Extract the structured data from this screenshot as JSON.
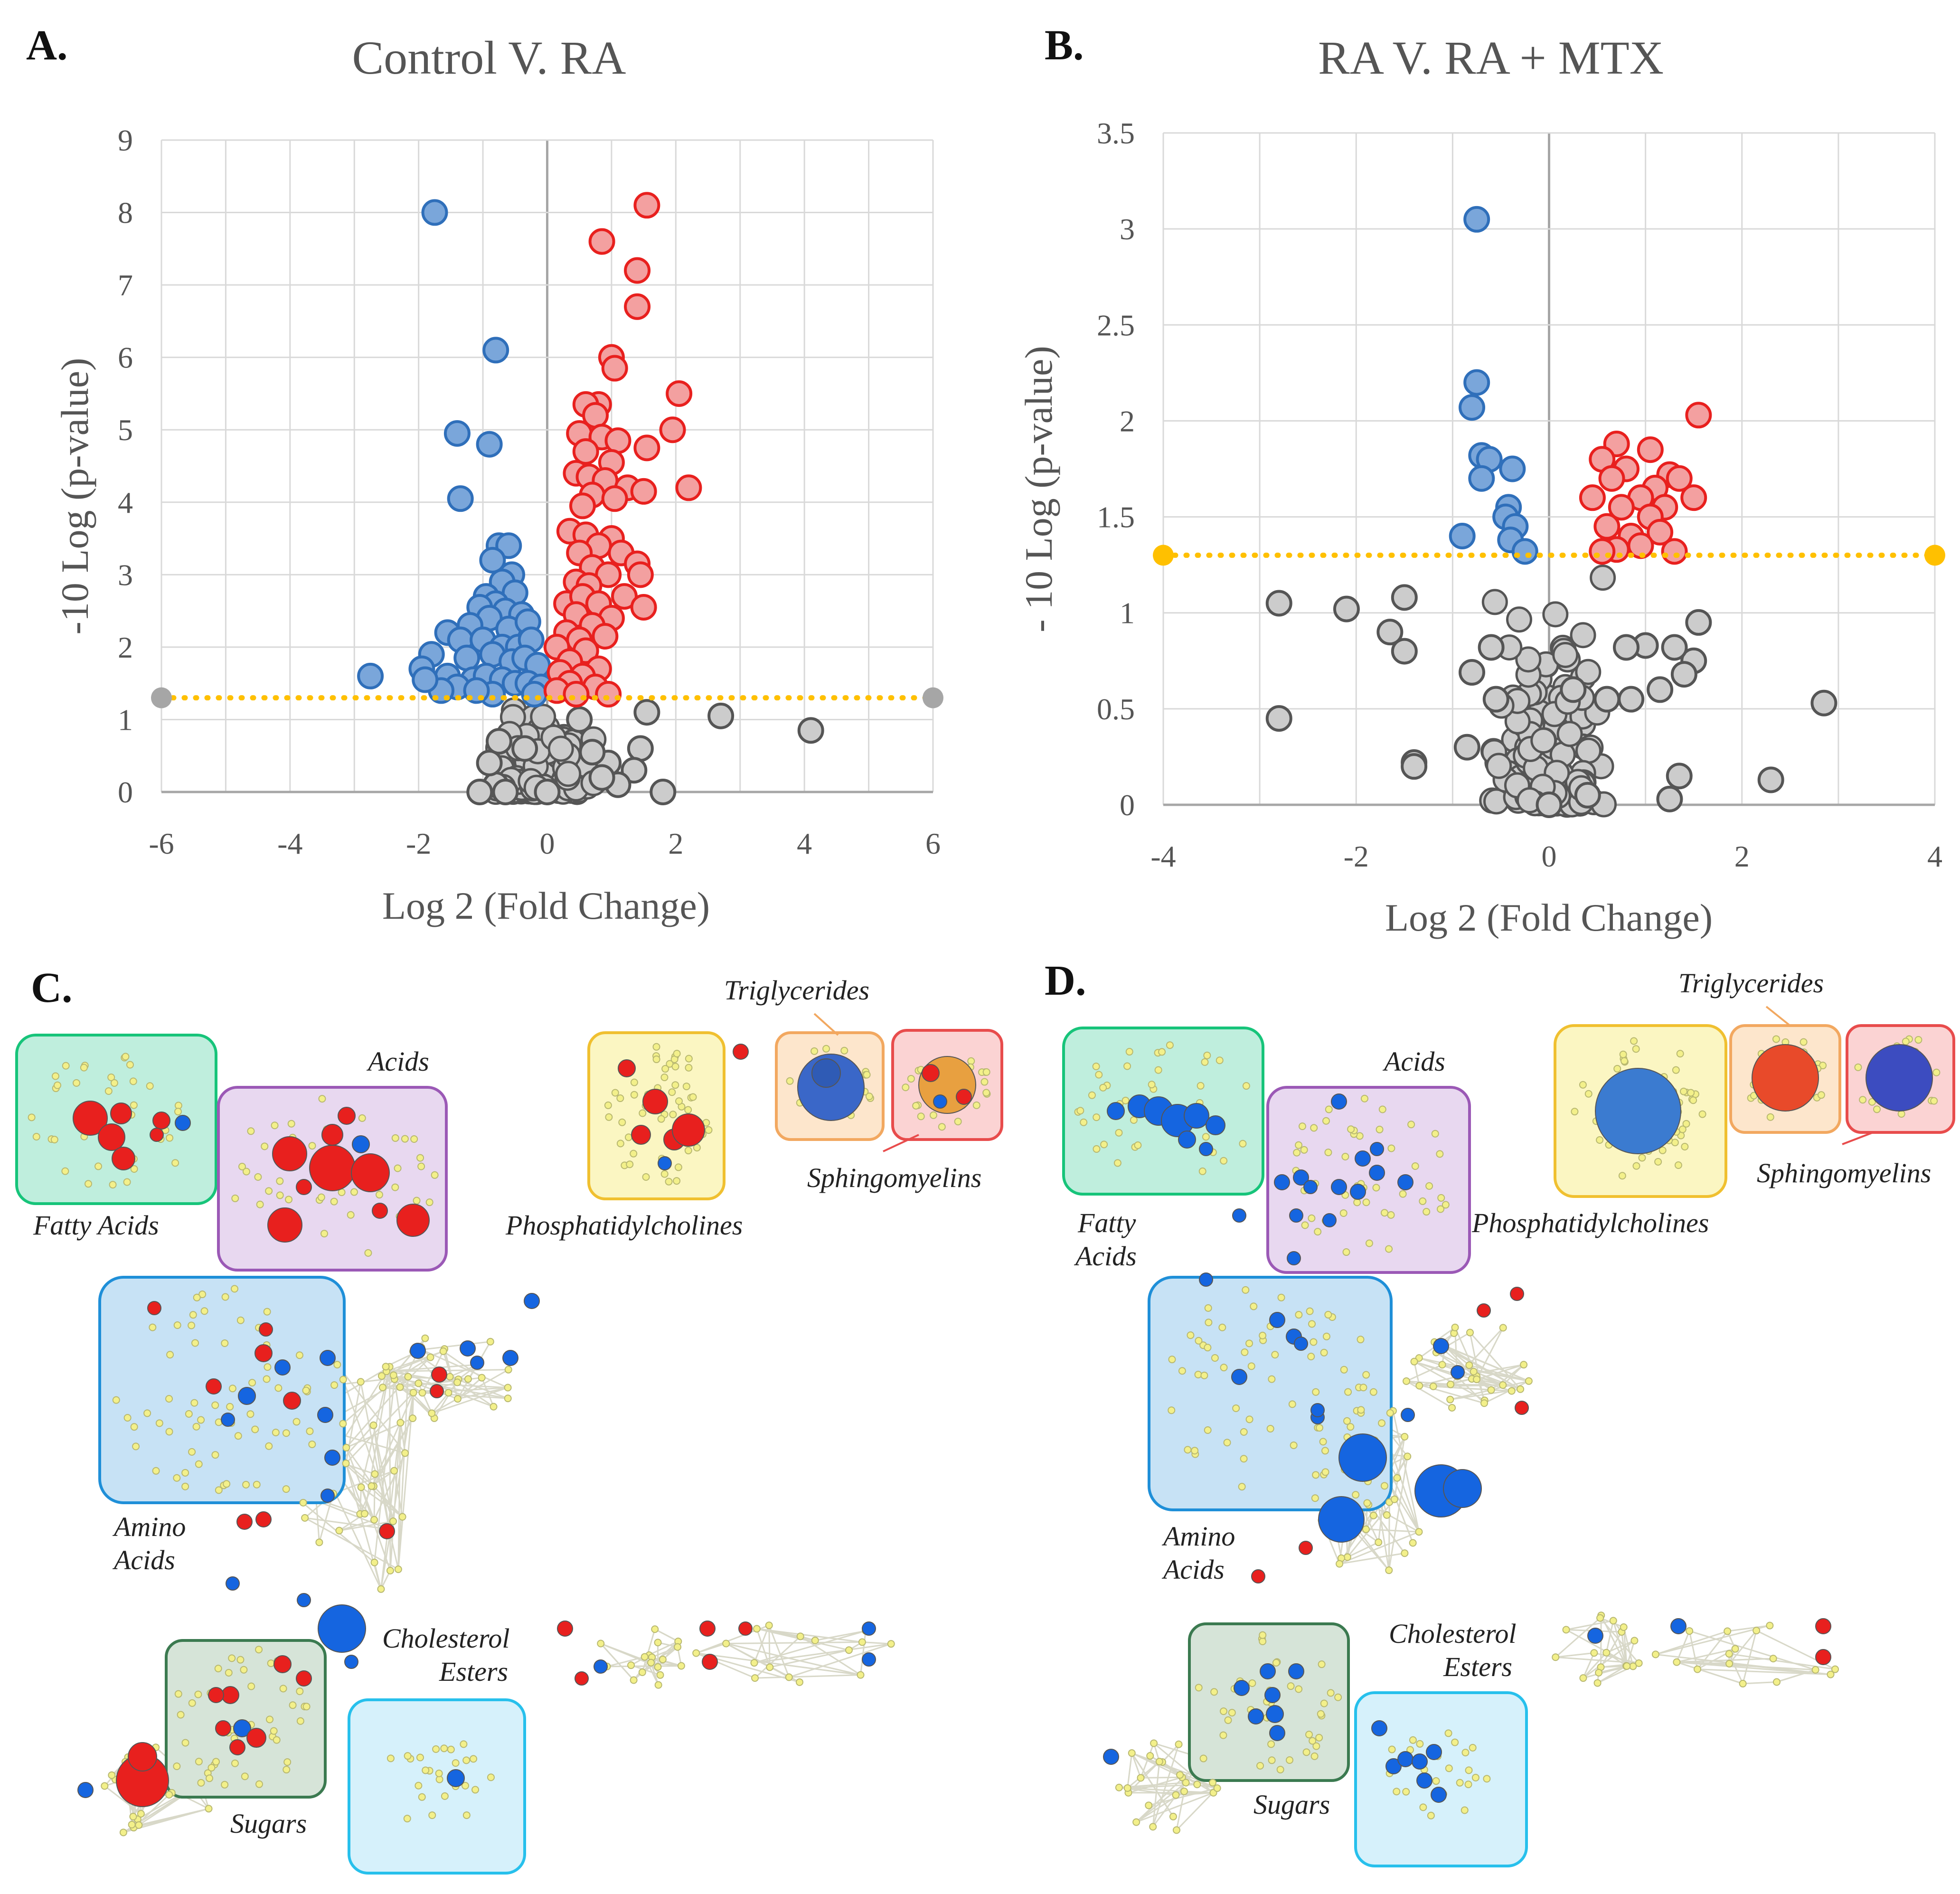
{
  "figure": {
    "colors": {
      "up": "#e8201e",
      "down": "#2f6fba",
      "down_light": "#7aa6da",
      "ns": "#cccccc",
      "ns_edge": "#555555",
      "threshold": "#ffc000",
      "up_fill": "#f3a0a0"
    },
    "panel_labels": [
      "A.",
      "B.",
      "C.",
      "D."
    ],
    "network_labels": {
      "c": [
        "Fatty Acids",
        "Acids",
        "Triglycerides",
        "Sphingomyelins",
        "Phosphatidylcholines",
        "Amino",
        "Acids",
        "Cholesterol",
        "Esters",
        "Sugars"
      ],
      "d": [
        "Fatty",
        "Acids",
        "Acids",
        "Triglycerides",
        "Sphingomyelins",
        "Phosphatidylcholines",
        "Amino",
        "Acids",
        "Cholesterol",
        "Esters",
        "Sugars"
      ]
    }
  },
  "chart_data": [
    {
      "type": "scatter",
      "title": "Control V. RA",
      "xlabel": "Log 2 (Fold Change)",
      "ylabel": "-10 Log (p-value)",
      "xlim": [
        -6,
        6
      ],
      "ylim": [
        0,
        9
      ],
      "xticks": [
        "-6",
        "-4",
        "-2",
        "0",
        "2",
        "4",
        "6"
      ],
      "yticks": [
        "0",
        "1",
        "2",
        "3",
        "4",
        "5",
        "6",
        "7",
        "8",
        "9"
      ],
      "threshold": 1.3,
      "grid": true,
      "series": [
        {
          "name": "Down",
          "points": [
            [
              -1.75,
              8.0
            ],
            [
              -0.8,
              6.1
            ],
            [
              -1.4,
              4.95
            ],
            [
              -0.9,
              4.8
            ],
            [
              -1.35,
              4.05
            ],
            [
              -0.75,
              3.4
            ],
            [
              -0.6,
              3.4
            ],
            [
              -0.85,
              3.2
            ],
            [
              -0.55,
              3.0
            ],
            [
              -0.7,
              2.9
            ],
            [
              -0.5,
              2.75
            ],
            [
              -0.95,
              2.7
            ],
            [
              -0.8,
              2.6
            ],
            [
              -1.05,
              2.55
            ],
            [
              -0.65,
              2.5
            ],
            [
              -0.4,
              2.45
            ],
            [
              -0.9,
              2.4
            ],
            [
              -1.2,
              2.3
            ],
            [
              -1.55,
              2.2
            ],
            [
              -0.6,
              2.25
            ],
            [
              -0.3,
              2.35
            ],
            [
              -1.35,
              2.1
            ],
            [
              -1.0,
              2.1
            ],
            [
              -0.7,
              2.0
            ],
            [
              -0.45,
              2.0
            ],
            [
              -0.25,
              2.1
            ],
            [
              -1.8,
              1.9
            ],
            [
              -1.25,
              1.85
            ],
            [
              -0.85,
              1.9
            ],
            [
              -0.55,
              1.8
            ],
            [
              -0.35,
              1.85
            ],
            [
              -0.15,
              1.75
            ],
            [
              -1.95,
              1.7
            ],
            [
              -1.55,
              1.6
            ],
            [
              -1.15,
              1.55
            ],
            [
              -0.95,
              1.6
            ],
            [
              -0.7,
              1.55
            ],
            [
              -0.5,
              1.5
            ],
            [
              -0.3,
              1.5
            ],
            [
              -0.1,
              1.45
            ],
            [
              -1.4,
              1.45
            ],
            [
              -1.65,
              1.4
            ],
            [
              -2.75,
              1.6
            ],
            [
              -1.9,
              1.55
            ],
            [
              -0.2,
              1.35
            ],
            [
              -0.85,
              1.35
            ],
            [
              -1.1,
              1.4
            ]
          ]
        },
        {
          "name": "Up",
          "points": [
            [
              1.55,
              8.1
            ],
            [
              0.85,
              7.6
            ],
            [
              1.4,
              7.2
            ],
            [
              1.4,
              6.7
            ],
            [
              1.0,
              6.0
            ],
            [
              1.05,
              5.85
            ],
            [
              2.05,
              5.5
            ],
            [
              0.8,
              5.35
            ],
            [
              0.6,
              5.35
            ],
            [
              0.75,
              5.2
            ],
            [
              1.95,
              5.0
            ],
            [
              0.5,
              4.95
            ],
            [
              0.85,
              4.9
            ],
            [
              1.1,
              4.85
            ],
            [
              1.55,
              4.75
            ],
            [
              0.6,
              4.7
            ],
            [
              1.0,
              4.55
            ],
            [
              0.45,
              4.4
            ],
            [
              0.65,
              4.35
            ],
            [
              0.9,
              4.3
            ],
            [
              2.2,
              4.2
            ],
            [
              1.25,
              4.2
            ],
            [
              1.5,
              4.15
            ],
            [
              0.7,
              4.1
            ],
            [
              1.05,
              4.05
            ],
            [
              0.55,
              3.95
            ],
            [
              0.35,
              3.6
            ],
            [
              0.6,
              3.55
            ],
            [
              1.0,
              3.5
            ],
            [
              0.8,
              3.4
            ],
            [
              1.15,
              3.3
            ],
            [
              0.5,
              3.3
            ],
            [
              1.4,
              3.15
            ],
            [
              0.7,
              3.1
            ],
            [
              0.95,
              3.0
            ],
            [
              0.45,
              2.9
            ],
            [
              1.45,
              3.0
            ],
            [
              0.65,
              2.85
            ],
            [
              1.2,
              2.7
            ],
            [
              0.3,
              2.6
            ],
            [
              0.55,
              2.7
            ],
            [
              0.8,
              2.6
            ],
            [
              1.5,
              2.55
            ],
            [
              0.45,
              2.45
            ],
            [
              1.0,
              2.4
            ],
            [
              0.7,
              2.3
            ],
            [
              0.3,
              2.2
            ],
            [
              0.9,
              2.15
            ],
            [
              0.5,
              2.1
            ],
            [
              0.15,
              2.0
            ],
            [
              0.6,
              1.95
            ],
            [
              0.35,
              1.8
            ],
            [
              0.8,
              1.7
            ],
            [
              0.2,
              1.65
            ],
            [
              0.55,
              1.6
            ],
            [
              0.35,
              1.5
            ],
            [
              0.75,
              1.45
            ],
            [
              0.15,
              1.4
            ],
            [
              0.95,
              1.35
            ],
            [
              0.45,
              1.35
            ]
          ]
        },
        {
          "name": "NS",
          "points": [
            [
              2.7,
              1.05
            ],
            [
              4.1,
              0.85
            ],
            [
              1.55,
              1.1
            ],
            [
              1.45,
              0.6
            ],
            [
              1.35,
              0.3
            ],
            [
              1.8,
              0.0
            ],
            [
              1.1,
              0.1
            ],
            [
              0.95,
              0.4
            ],
            [
              -0.8,
              0.1
            ],
            [
              -0.65,
              0.0
            ],
            [
              -0.35,
              0.6
            ],
            [
              -0.9,
              0.4
            ],
            [
              -0.75,
              0.7
            ],
            [
              0.7,
              0.55
            ],
            [
              0.85,
              0.2
            ],
            [
              -1.05,
              0.0
            ],
            [
              0.5,
              1.0
            ],
            [
              0.0,
              0.0
            ]
          ]
        }
      ]
    },
    {
      "type": "scatter",
      "title": "RA V. RA + MTX",
      "xlabel": "Log 2 (Fold Change)",
      "ylabel": "- 10 Log (p-value)",
      "xlim": [
        -4,
        4
      ],
      "ylim": [
        0,
        3.5
      ],
      "xticks": [
        "-4",
        "-2",
        "0",
        "2",
        "4"
      ],
      "yticks": [
        "0",
        "0.5",
        "1",
        "1.5",
        "2",
        "2.5",
        "3",
        "3.5"
      ],
      "threshold": 1.3,
      "grid": true,
      "series": [
        {
          "name": "Down",
          "points": [
            [
              -0.75,
              3.05
            ],
            [
              -0.75,
              2.2
            ],
            [
              -0.8,
              2.07
            ],
            [
              -0.7,
              1.82
            ],
            [
              -0.62,
              1.8
            ],
            [
              -0.7,
              1.7
            ],
            [
              -0.38,
              1.75
            ],
            [
              -0.42,
              1.55
            ],
            [
              -0.45,
              1.5
            ],
            [
              -0.35,
              1.45
            ],
            [
              -0.9,
              1.4
            ],
            [
              -0.4,
              1.38
            ],
            [
              -0.25,
              1.32
            ]
          ]
        },
        {
          "name": "Up",
          "points": [
            [
              1.55,
              2.03
            ],
            [
              0.7,
              1.88
            ],
            [
              1.05,
              1.85
            ],
            [
              0.55,
              1.8
            ],
            [
              0.8,
              1.75
            ],
            [
              1.25,
              1.72
            ],
            [
              0.65,
              1.7
            ],
            [
              1.1,
              1.65
            ],
            [
              1.35,
              1.7
            ],
            [
              0.95,
              1.6
            ],
            [
              0.45,
              1.6
            ],
            [
              1.5,
              1.6
            ],
            [
              0.75,
              1.55
            ],
            [
              1.2,
              1.55
            ],
            [
              1.05,
              1.5
            ],
            [
              0.6,
              1.45
            ],
            [
              0.85,
              1.4
            ],
            [
              1.15,
              1.42
            ],
            [
              0.95,
              1.35
            ],
            [
              0.7,
              1.33
            ],
            [
              1.3,
              1.32
            ],
            [
              0.55,
              1.32
            ]
          ]
        },
        {
          "name": "NS",
          "points": [
            [
              -2.8,
              1.05
            ],
            [
              -2.1,
              1.02
            ],
            [
              -1.5,
              1.08
            ],
            [
              -1.65,
              0.9
            ],
            [
              -1.5,
              0.8
            ],
            [
              -2.8,
              0.45
            ],
            [
              -1.4,
              0.22
            ],
            [
              -1.4,
              0.2
            ],
            [
              -0.85,
              0.3
            ],
            [
              -0.8,
              0.69
            ],
            [
              2.85,
              0.53
            ],
            [
              2.3,
              0.13
            ],
            [
              1.35,
              0.15
            ],
            [
              1.25,
              0.03
            ],
            [
              1.55,
              0.95
            ],
            [
              1.5,
              0.75
            ],
            [
              1.3,
              0.82
            ],
            [
              1.4,
              0.68
            ],
            [
              1.15,
              0.6
            ],
            [
              1.0,
              0.83
            ],
            [
              0.8,
              0.82
            ],
            [
              0.85,
              0.55
            ],
            [
              -0.6,
              0.82
            ],
            [
              -0.55,
              0.55
            ],
            [
              0.6,
              0.55
            ],
            [
              0.4,
              0.05
            ],
            [
              0.25,
              0.6
            ],
            [
              0.0,
              0.0
            ]
          ]
        }
      ]
    }
  ]
}
